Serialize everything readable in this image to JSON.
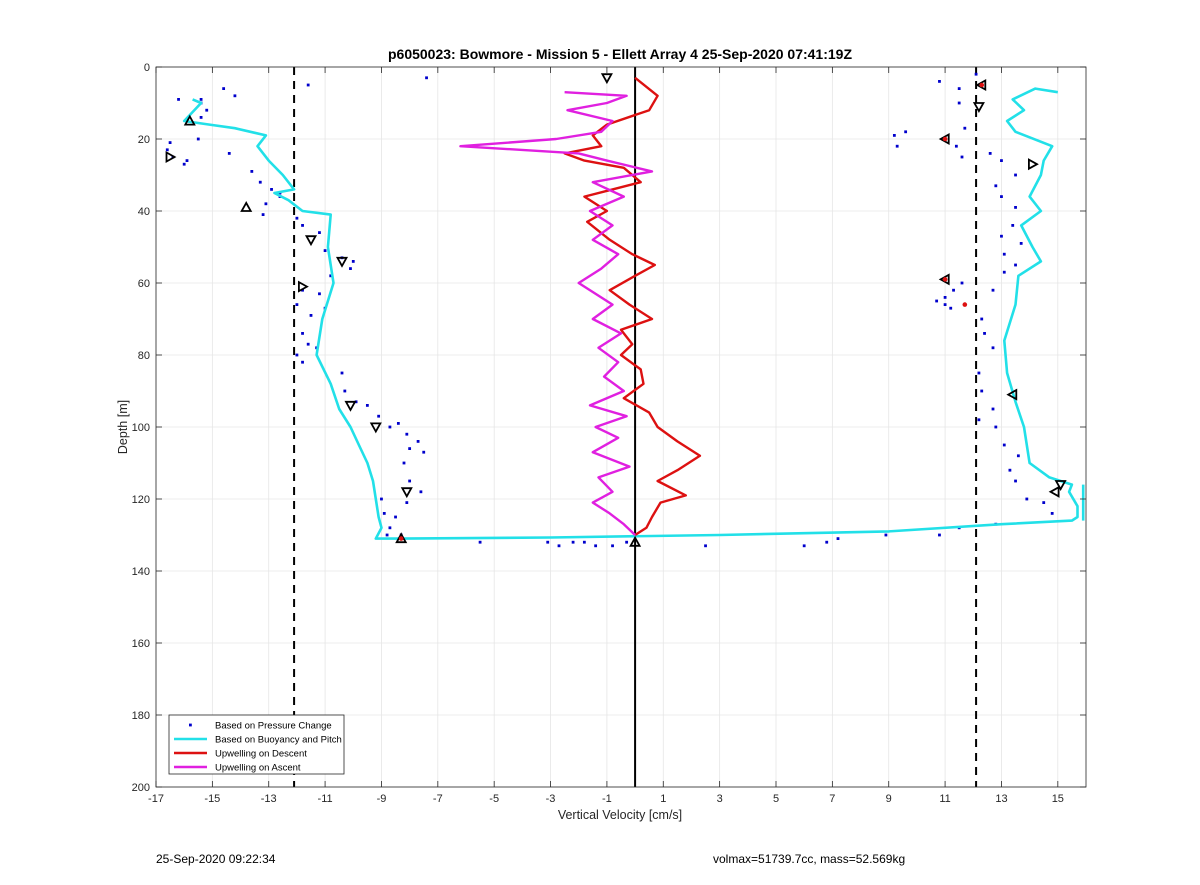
{
  "chart_data": {
    "type": "line",
    "title": "p6050023: Bowmore - Mission 5 - Ellett Array 4 25-Sep-2020 07:41:19Z",
    "xlabel": "Vertical Velocity [cm/s]",
    "ylabel": "Depth [m]",
    "xlim": [
      -17,
      16
    ],
    "ylim": [
      0,
      200
    ],
    "y_reversed": true,
    "grid": true,
    "x_ticks": [
      -17,
      -15,
      -13,
      -11,
      -9,
      -7,
      -5,
      -3,
      -1,
      1,
      3,
      5,
      7,
      9,
      11,
      13,
      15
    ],
    "y_ticks": [
      0,
      20,
      40,
      60,
      80,
      100,
      120,
      140,
      160,
      180,
      200
    ],
    "reference_lines": {
      "zero_line": 0,
      "dashed_lines": [
        -12.1,
        12.1
      ]
    },
    "legend_position": "bottom-left",
    "series": [
      {
        "name": "Based on Pressure Change",
        "kind": "scatter",
        "color": "#0000cc",
        "points": [
          [
            -16.2,
            9
          ],
          [
            -15.4,
            9
          ],
          [
            -15.4,
            10
          ],
          [
            -14.6,
            6
          ],
          [
            -14.2,
            8
          ],
          [
            -15.2,
            12
          ],
          [
            -15.4,
            14
          ],
          [
            -16.6,
            23
          ],
          [
            -16.4,
            25
          ],
          [
            -16.5,
            21
          ],
          [
            -16.0,
            27
          ],
          [
            -15.9,
            26
          ],
          [
            -15.5,
            20
          ],
          [
            -14.4,
            24
          ],
          [
            -13.3,
            32
          ],
          [
            -12.9,
            34
          ],
          [
            -12.6,
            35
          ],
          [
            -13.1,
            38
          ],
          [
            -13.2,
            41
          ],
          [
            -12.6,
            36
          ],
          [
            -13.6,
            29
          ],
          [
            -11.6,
            5
          ],
          [
            -12.0,
            42
          ],
          [
            -11.8,
            44
          ],
          [
            -11.2,
            46
          ],
          [
            -11.0,
            51
          ],
          [
            -10.4,
            53
          ],
          [
            -10.1,
            56
          ],
          [
            -10.0,
            54
          ],
          [
            -10.8,
            58
          ],
          [
            -11.8,
            62
          ],
          [
            -11.2,
            63
          ],
          [
            -11.0,
            67
          ],
          [
            -11.5,
            69
          ],
          [
            -12.0,
            66
          ],
          [
            -11.8,
            74
          ],
          [
            -11.6,
            77
          ],
          [
            -12.0,
            80
          ],
          [
            -11.8,
            82
          ],
          [
            -11.3,
            78
          ],
          [
            -10.4,
            85
          ],
          [
            -10.3,
            90
          ],
          [
            -9.9,
            93
          ],
          [
            -9.5,
            94
          ],
          [
            -9.1,
            97
          ],
          [
            -8.7,
            100
          ],
          [
            -8.4,
            99
          ],
          [
            -8.1,
            102
          ],
          [
            -7.7,
            104
          ],
          [
            -8.0,
            106
          ],
          [
            -7.5,
            107
          ],
          [
            -8.2,
            110
          ],
          [
            -8.0,
            115
          ],
          [
            -7.6,
            118
          ],
          [
            -8.1,
            121
          ],
          [
            -8.5,
            125
          ],
          [
            -8.7,
            128
          ],
          [
            -8.3,
            130
          ],
          [
            -8.8,
            130
          ],
          [
            -8.9,
            124
          ],
          [
            -9.0,
            120
          ],
          [
            -7.4,
            3
          ],
          [
            -5.5,
            132
          ],
          [
            -3.1,
            132
          ],
          [
            -2.7,
            133
          ],
          [
            -2.2,
            132
          ],
          [
            -1.8,
            132
          ],
          [
            -1.4,
            133
          ],
          [
            -0.8,
            133
          ],
          [
            -0.3,
            132
          ],
          [
            2.5,
            133
          ],
          [
            6.0,
            133
          ],
          [
            6.8,
            132
          ],
          [
            7.2,
            131
          ],
          [
            8.9,
            130
          ],
          [
            10.8,
            130
          ],
          [
            11.5,
            128
          ],
          [
            9.3,
            22
          ],
          [
            9.6,
            18
          ],
          [
            9.2,
            19
          ],
          [
            10.8,
            4
          ],
          [
            11.5,
            6
          ],
          [
            11.5,
            10
          ],
          [
            11.7,
            17
          ],
          [
            11.4,
            22
          ],
          [
            11.6,
            25
          ],
          [
            12.6,
            24
          ],
          [
            13.0,
            26
          ],
          [
            13.5,
            30
          ],
          [
            12.8,
            33
          ],
          [
            13.0,
            36
          ],
          [
            13.5,
            39
          ],
          [
            13.4,
            44
          ],
          [
            13.0,
            47
          ],
          [
            13.7,
            49
          ],
          [
            13.1,
            52
          ],
          [
            13.1,
            57
          ],
          [
            13.5,
            55
          ],
          [
            12.7,
            62
          ],
          [
            12.3,
            70
          ],
          [
            12.4,
            74
          ],
          [
            12.7,
            78
          ],
          [
            12.2,
            85
          ],
          [
            12.3,
            90
          ],
          [
            12.7,
            95
          ],
          [
            12.2,
            98
          ],
          [
            12.8,
            100
          ],
          [
            13.1,
            105
          ],
          [
            13.6,
            108
          ],
          [
            13.3,
            112
          ],
          [
            13.5,
            115
          ],
          [
            13.9,
            120
          ],
          [
            14.5,
            121
          ],
          [
            14.8,
            124
          ],
          [
            12.8,
            127
          ],
          [
            11.0,
            64
          ],
          [
            11.2,
            67
          ],
          [
            11.3,
            62
          ],
          [
            10.7,
            65
          ],
          [
            11.6,
            60
          ],
          [
            11.0,
            66
          ],
          [
            12.1,
            2
          ]
        ]
      },
      {
        "name": "Based on Buoyancy and Pitch",
        "kind": "line",
        "color": "#22e0e8",
        "down": [
          [
            -15.7,
            9
          ],
          [
            -15.4,
            10
          ],
          [
            -16.0,
            15
          ],
          [
            -15.1,
            16
          ],
          [
            -14.2,
            17
          ],
          [
            -13.1,
            19
          ],
          [
            -13.4,
            22
          ],
          [
            -13.0,
            26
          ],
          [
            -12.5,
            30
          ],
          [
            -12.1,
            34
          ],
          [
            -12.8,
            35
          ],
          [
            -12.3,
            37
          ],
          [
            -11.8,
            40
          ],
          [
            -10.8,
            41
          ],
          [
            -10.9,
            50
          ],
          [
            -10.7,
            60
          ],
          [
            -11.1,
            70
          ],
          [
            -11.3,
            80
          ],
          [
            -10.8,
            88
          ],
          [
            -10.5,
            95
          ],
          [
            -10.1,
            100
          ],
          [
            -9.8,
            105
          ],
          [
            -9.5,
            110
          ],
          [
            -9.3,
            115
          ],
          [
            -9.2,
            120
          ],
          [
            -9.1,
            125
          ],
          [
            -9.0,
            128
          ],
          [
            -9.2,
            131
          ],
          [
            -8.3,
            131
          ],
          [
            -3.0,
            130.7
          ],
          [
            3.0,
            130
          ],
          [
            9.0,
            129
          ],
          [
            13.0,
            127
          ],
          [
            15.5,
            126
          ],
          [
            15.7,
            125
          ],
          [
            15.7,
            122
          ],
          [
            15.4,
            118
          ],
          [
            15.5,
            116
          ],
          [
            14.7,
            114
          ],
          [
            14.0,
            110
          ],
          [
            13.8,
            100
          ],
          [
            13.5,
            93
          ],
          [
            13.2,
            85
          ],
          [
            13.1,
            76
          ],
          [
            13.5,
            66
          ],
          [
            13.6,
            58
          ],
          [
            14.4,
            54
          ],
          [
            14.1,
            50
          ],
          [
            13.7,
            44
          ],
          [
            14.4,
            40
          ],
          [
            14.0,
            36
          ],
          [
            14.4,
            30
          ],
          [
            14.5,
            26
          ],
          [
            14.8,
            22
          ],
          [
            13.5,
            18
          ],
          [
            13.2,
            15
          ],
          [
            13.8,
            12
          ],
          [
            13.4,
            9
          ],
          [
            14.2,
            6
          ],
          [
            15.0,
            7
          ]
        ],
        "up": [
          [
            15.9,
            116
          ],
          [
            15.9,
            120
          ],
          [
            15.9,
            124
          ],
          [
            15.9,
            126
          ],
          [
            13.3,
            91
          ],
          [
            15.5,
            22
          ],
          [
            15.8,
            7
          ]
        ]
      },
      {
        "name": "Upwelling on Descent",
        "kind": "line",
        "color": "#dd1111",
        "points": [
          [
            0.0,
            3
          ],
          [
            0.8,
            8
          ],
          [
            0.5,
            12
          ],
          [
            -1.0,
            16
          ],
          [
            -1.5,
            19
          ],
          [
            -1.2,
            22
          ],
          [
            -2.5,
            24
          ],
          [
            -1.8,
            26
          ],
          [
            -0.4,
            28
          ],
          [
            0.2,
            32
          ],
          [
            -0.8,
            34
          ],
          [
            -1.8,
            36
          ],
          [
            -1.0,
            40
          ],
          [
            -1.7,
            43
          ],
          [
            -0.9,
            48
          ],
          [
            -0.1,
            52
          ],
          [
            0.7,
            55
          ],
          [
            0.0,
            58
          ],
          [
            -0.9,
            62
          ],
          [
            -0.2,
            66
          ],
          [
            0.6,
            70
          ],
          [
            -0.5,
            73
          ],
          [
            -0.1,
            77
          ],
          [
            -0.5,
            80
          ],
          [
            0.2,
            84
          ],
          [
            0.3,
            88
          ],
          [
            -0.4,
            92
          ],
          [
            0.5,
            96
          ],
          [
            0.8,
            100
          ],
          [
            1.5,
            104
          ],
          [
            2.3,
            108
          ],
          [
            1.5,
            112
          ],
          [
            0.8,
            115
          ],
          [
            1.8,
            119
          ],
          [
            0.9,
            121
          ],
          [
            0.6,
            125
          ],
          [
            0.4,
            128
          ],
          [
            0.0,
            130
          ]
        ]
      },
      {
        "name": "Upwelling on Ascent",
        "kind": "line",
        "color": "#e020e0",
        "points": [
          [
            0.0,
            130
          ],
          [
            -0.4,
            127
          ],
          [
            -0.9,
            124
          ],
          [
            -1.5,
            121
          ],
          [
            -0.8,
            118
          ],
          [
            -1.3,
            114
          ],
          [
            -0.2,
            111
          ],
          [
            -1.5,
            107
          ],
          [
            -0.6,
            103
          ],
          [
            -1.4,
            100
          ],
          [
            -0.3,
            97
          ],
          [
            -1.6,
            94
          ],
          [
            -0.4,
            90
          ],
          [
            -1.1,
            86
          ],
          [
            -0.6,
            82
          ],
          [
            -1.3,
            78
          ],
          [
            -0.5,
            74
          ],
          [
            -1.5,
            70
          ],
          [
            -0.8,
            66
          ],
          [
            -2.0,
            60
          ],
          [
            -1.2,
            56
          ],
          [
            -0.6,
            52
          ],
          [
            -1.5,
            48
          ],
          [
            -0.8,
            44
          ],
          [
            -1.6,
            40
          ],
          [
            -0.4,
            36
          ],
          [
            -1.5,
            32
          ],
          [
            0.6,
            29
          ],
          [
            -1.0,
            26
          ],
          [
            -2.0,
            24
          ],
          [
            -6.2,
            22
          ],
          [
            -2.8,
            20
          ],
          [
            -1.2,
            18
          ],
          [
            -0.8,
            15
          ],
          [
            -2.4,
            12
          ],
          [
            -1.0,
            10
          ],
          [
            -0.3,
            8
          ],
          [
            -2.5,
            7
          ]
        ]
      }
    ],
    "markers": [
      {
        "x": -1.0,
        "y": 3,
        "shape": "down-triangle",
        "color": "#000"
      },
      {
        "x": -15.8,
        "y": 15,
        "shape": "up-triangle",
        "color": "#000"
      },
      {
        "x": -16.5,
        "y": 25,
        "shape": "right-triangle",
        "color": "#000"
      },
      {
        "x": -13.8,
        "y": 39,
        "shape": "up-triangle",
        "color": "#000"
      },
      {
        "x": -11.5,
        "y": 48,
        "shape": "down-triangle",
        "color": "#000"
      },
      {
        "x": -10.4,
        "y": 54,
        "shape": "down-triangle",
        "color": "#000"
      },
      {
        "x": -11.8,
        "y": 61,
        "shape": "right-triangle",
        "color": "#000"
      },
      {
        "x": -10.1,
        "y": 94,
        "shape": "down-triangle",
        "color": "#000"
      },
      {
        "x": -9.2,
        "y": 100,
        "shape": "down-triangle",
        "color": "#000"
      },
      {
        "x": -8.1,
        "y": 118,
        "shape": "down-triangle",
        "color": "#000"
      },
      {
        "x": -8.3,
        "y": 131,
        "shape": "up-triangle",
        "color": "#000"
      },
      {
        "x": 0.0,
        "y": 132,
        "shape": "up-triangle",
        "color": "#000"
      },
      {
        "x": 12.3,
        "y": 5,
        "shape": "left-triangle",
        "color": "#000"
      },
      {
        "x": 12.2,
        "y": 11,
        "shape": "down-triangle",
        "color": "#000"
      },
      {
        "x": 11.0,
        "y": 20,
        "shape": "left-triangle",
        "color": "#000"
      },
      {
        "x": 14.1,
        "y": 27,
        "shape": "right-triangle",
        "color": "#000"
      },
      {
        "x": 11.0,
        "y": 59,
        "shape": "left-triangle",
        "color": "#000"
      },
      {
        "x": 13.4,
        "y": 91,
        "shape": "left-triangle",
        "color": "#000"
      },
      {
        "x": 15.1,
        "y": 116,
        "shape": "down-triangle",
        "color": "#000"
      },
      {
        "x": 14.9,
        "y": 118,
        "shape": "left-triangle",
        "color": "#000"
      }
    ],
    "red_dots": [
      [
        11.7,
        66
      ],
      [
        11.0,
        20
      ],
      [
        11.0,
        59
      ],
      [
        -8.3,
        131
      ],
      [
        12.3,
        5
      ]
    ]
  },
  "footer": {
    "timestamp": "25-Sep-2020 09:22:34",
    "stats": "volmax=51739.7cc, mass=52.569kg"
  }
}
